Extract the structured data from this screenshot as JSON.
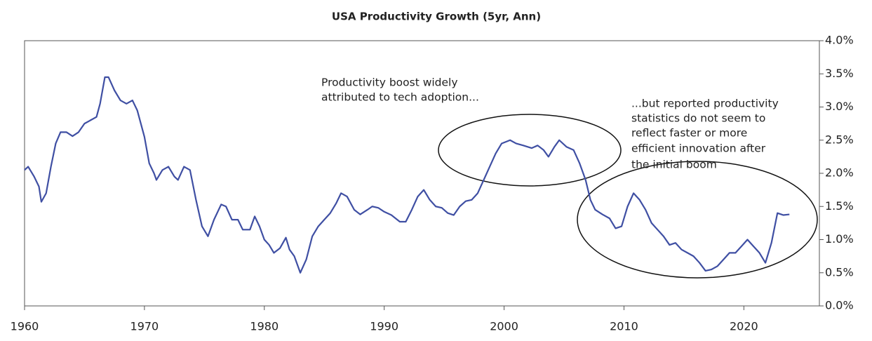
{
  "chart_data": {
    "type": "line",
    "title": "USA Productivity Growth (5yr, Ann)",
    "x": [
      1960,
      1960.3,
      1960.8,
      1961.2,
      1961.4,
      1961.8,
      1962.2,
      1962.6,
      1963,
      1963.5,
      1964,
      1964.5,
      1965,
      1965.5,
      1966,
      1966.3,
      1966.7,
      1967,
      1967.5,
      1968,
      1968.5,
      1969,
      1969.4,
      1970,
      1970.4,
      1970.8,
      1971,
      1971.5,
      1972,
      1972.5,
      1972.8,
      1973.3,
      1973.8,
      1974.3,
      1974.8,
      1975.3,
      1975.8,
      1976.4,
      1976.8,
      1977.3,
      1977.8,
      1978.2,
      1978.8,
      1979.2,
      1979.6,
      1980,
      1980.4,
      1980.8,
      1981.3,
      1981.8,
      1982.1,
      1982.5,
      1983,
      1983.5,
      1984,
      1984.5,
      1985,
      1985.5,
      1986,
      1986.4,
      1986.9,
      1987.5,
      1988,
      1988.6,
      1989,
      1989.5,
      1990,
      1990.6,
      1991.3,
      1991.8,
      1992.3,
      1992.8,
      1993.3,
      1993.8,
      1994.3,
      1994.8,
      1995.3,
      1995.8,
      1996.3,
      1996.8,
      1997.3,
      1997.8,
      1998.3,
      1998.8,
      1999.3,
      1999.8,
      2000.5,
      2001,
      2001.6,
      2002.3,
      2002.8,
      2003.3,
      2003.7,
      2004.2,
      2004.6,
      2005.2,
      2005.8,
      2006.3,
      2006.8,
      2007.2,
      2007.6,
      2008.2,
      2008.8,
      2009.3,
      2009.8,
      2010.3,
      2010.8,
      2011.3,
      2011.8,
      2012.3,
      2012.8,
      2013.3,
      2013.8,
      2014.3,
      2014.8,
      2015.3,
      2015.8,
      2016.3,
      2016.8,
      2017.3,
      2017.8,
      2018.3,
      2018.8,
      2019.3,
      2019.8,
      2020.3,
      2020.8,
      2021.3,
      2021.8,
      2022.3,
      2022.8,
      2023.3,
      2023.8
    ],
    "series": [
      {
        "name": "USA Productivity Growth (5yr, Ann)",
        "color": "#3f4fa3",
        "values": [
          2.05,
          2.1,
          1.95,
          1.8,
          1.57,
          1.7,
          2.1,
          2.45,
          2.62,
          2.62,
          2.56,
          2.62,
          2.75,
          2.8,
          2.85,
          3.05,
          3.45,
          3.45,
          3.25,
          3.1,
          3.05,
          3.1,
          2.95,
          2.55,
          2.15,
          2.0,
          1.9,
          2.05,
          2.1,
          1.95,
          1.9,
          2.1,
          2.05,
          1.6,
          1.2,
          1.05,
          1.3,
          1.53,
          1.5,
          1.3,
          1.3,
          1.15,
          1.15,
          1.35,
          1.2,
          1.0,
          0.92,
          0.8,
          0.87,
          1.03,
          0.85,
          0.75,
          0.5,
          0.7,
          1.05,
          1.2,
          1.3,
          1.4,
          1.55,
          1.7,
          1.65,
          1.45,
          1.38,
          1.45,
          1.5,
          1.48,
          1.42,
          1.37,
          1.27,
          1.27,
          1.45,
          1.65,
          1.75,
          1.6,
          1.5,
          1.48,
          1.4,
          1.37,
          1.5,
          1.58,
          1.6,
          1.7,
          1.9,
          2.1,
          2.3,
          2.45,
          2.5,
          2.45,
          2.42,
          2.38,
          2.42,
          2.35,
          2.25,
          2.4,
          2.5,
          2.4,
          2.35,
          2.15,
          1.9,
          1.6,
          1.45,
          1.38,
          1.32,
          1.17,
          1.2,
          1.5,
          1.7,
          1.6,
          1.45,
          1.25,
          1.15,
          1.05,
          0.92,
          0.95,
          0.85,
          0.8,
          0.75,
          0.65,
          0.53,
          0.55,
          0.6,
          0.7,
          0.8,
          0.8,
          0.9,
          1.0,
          0.9,
          0.8,
          0.65,
          0.95,
          1.4,
          1.37,
          1.38
        ]
      }
    ],
    "xlim": [
      1960,
      2026.3
    ],
    "xticks": [
      1960,
      1970,
      1980,
      1990,
      2000,
      2010,
      2020
    ],
    "ylim": [
      0,
      4
    ],
    "yticks": [
      {
        "value": 0,
        "label": "0.0%"
      },
      {
        "value": 0.5,
        "label": "0.5%"
      },
      {
        "value": 1,
        "label": "1.0%"
      },
      {
        "value": 1.5,
        "label": "1.5%"
      },
      {
        "value": 2,
        "label": "2.0%"
      },
      {
        "value": 2.5,
        "label": "2.5%"
      },
      {
        "value": 3,
        "label": "3.0%"
      },
      {
        "value": 3.5,
        "label": "3.5%"
      },
      {
        "value": 4,
        "label": "4.0%"
      }
    ],
    "annotations": [
      {
        "lines": [
          "Productivity boost widely",
          "attributed to tech adoption..."
        ]
      },
      {
        "lines": [
          "...but reported productivity",
          "statistics do not seem to",
          "reflect faster or more",
          "efficient innovation after",
          "the initial boom"
        ]
      }
    ]
  }
}
